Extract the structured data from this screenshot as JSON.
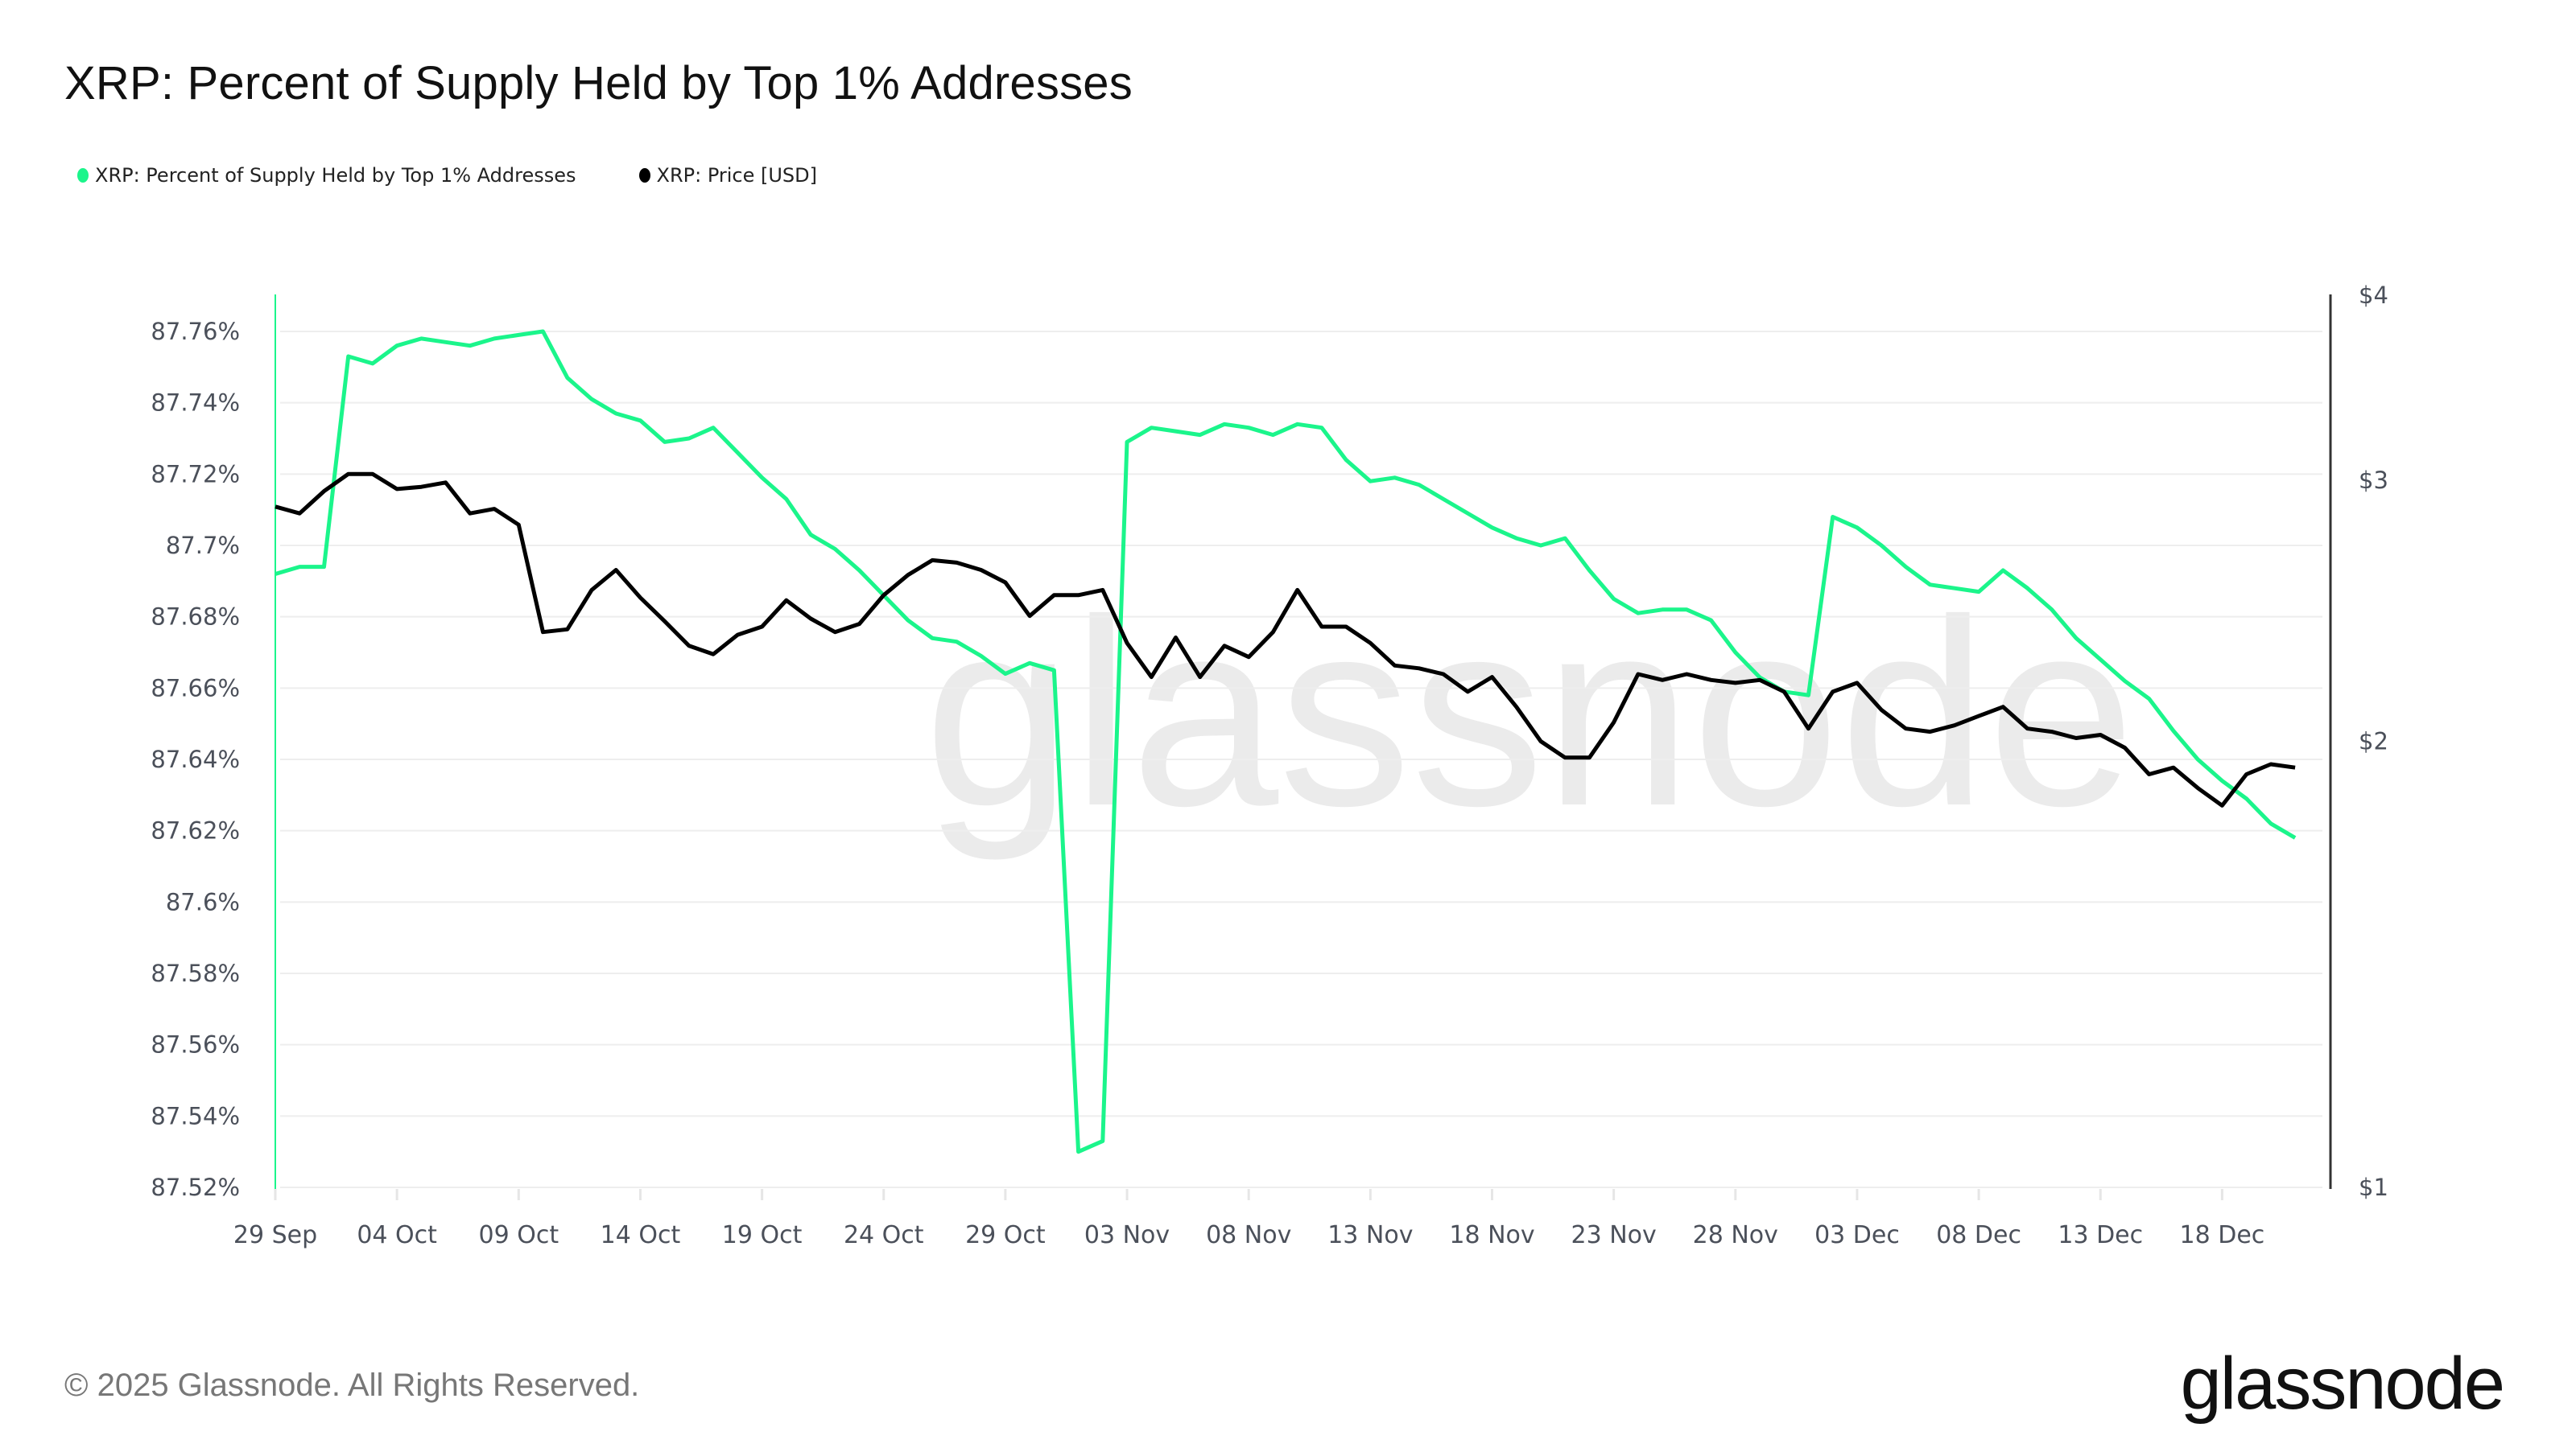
{
  "header": {
    "title": "XRP: Percent of Supply Held by Top 1% Addresses"
  },
  "legend": [
    {
      "label": "XRP: Percent of Supply Held by Top 1% Addresses",
      "color": "#1bf58b"
    },
    {
      "label": "XRP: Price [USD]",
      "color": "#000000"
    }
  ],
  "footer": {
    "copyright": "© 2025 Glassnode. All Rights Reserved.",
    "logo": "glassnode",
    "watermark": "glassnode"
  },
  "axes": {
    "left_ticks": [
      "87.76%",
      "87.74%",
      "87.72%",
      "87.7%",
      "87.68%",
      "87.66%",
      "87.64%",
      "87.62%",
      "87.6%",
      "87.58%",
      "87.56%",
      "87.54%",
      "87.52%"
    ],
    "right_ticks": [
      "$4",
      "$3",
      "$2",
      "$1"
    ],
    "x_ticks": [
      "29 Sep",
      "04 Oct",
      "09 Oct",
      "14 Oct",
      "19 Oct",
      "24 Oct",
      "29 Oct",
      "03 Nov",
      "08 Nov",
      "13 Nov",
      "18 Nov",
      "23 Nov",
      "28 Nov",
      "03 Dec",
      "08 Dec",
      "13 Dec",
      "18 Dec"
    ]
  },
  "chart_data": {
    "type": "line",
    "title": "XRP: Percent of Supply Held by Top 1% Addresses",
    "xlabel": "",
    "ylabel_left": "Percent of Supply Held by Top 1% Addresses",
    "ylabel_right": "Price [USD] (log scale)",
    "ylim_left": [
      87.52,
      87.765
    ],
    "ylim_right": [
      1,
      4
    ],
    "x_start": "2025-09-29",
    "x_step_days": 1,
    "grid": true,
    "legend_position": "top-left",
    "series": [
      {
        "name": "XRP: Percent of Supply Held by Top 1% Addresses",
        "axis": "left",
        "color": "#1bf58b",
        "values": [
          87.692,
          87.694,
          87.694,
          87.753,
          87.751,
          87.756,
          87.758,
          87.757,
          87.756,
          87.758,
          87.759,
          87.76,
          87.747,
          87.741,
          87.737,
          87.735,
          87.729,
          87.73,
          87.733,
          87.726,
          87.719,
          87.713,
          87.703,
          87.699,
          87.693,
          87.686,
          87.679,
          87.674,
          87.673,
          87.669,
          87.664,
          87.667,
          87.665,
          87.53,
          87.533,
          87.729,
          87.733,
          87.732,
          87.731,
          87.734,
          87.733,
          87.731,
          87.734,
          87.733,
          87.724,
          87.718,
          87.719,
          87.717,
          87.713,
          87.709,
          87.705,
          87.702,
          87.7,
          87.702,
          87.693,
          87.685,
          87.681,
          87.682,
          87.682,
          87.679,
          87.67,
          87.663,
          87.659,
          87.658,
          87.708,
          87.705,
          87.7,
          87.694,
          87.689,
          87.688,
          87.687,
          87.693,
          87.688,
          87.682,
          87.674,
          87.668,
          87.662,
          87.657,
          87.648,
          87.64,
          87.634,
          87.629,
          87.622,
          87.618
        ]
      },
      {
        "name": "XRP: Price [USD]",
        "axis": "right",
        "color": "#000000",
        "values": [
          2.88,
          2.85,
          2.95,
          3.03,
          3.03,
          2.96,
          2.97,
          2.99,
          2.85,
          2.87,
          2.8,
          2.37,
          2.38,
          2.53,
          2.61,
          2.5,
          2.41,
          2.32,
          2.29,
          2.36,
          2.39,
          2.49,
          2.42,
          2.37,
          2.4,
          2.51,
          2.59,
          2.65,
          2.64,
          2.61,
          2.56,
          2.43,
          2.51,
          2.51,
          2.53,
          2.33,
          2.21,
          2.35,
          2.21,
          2.32,
          2.28,
          2.37,
          2.53,
          2.39,
          2.39,
          2.33,
          2.25,
          2.24,
          2.22,
          2.16,
          2.21,
          2.11,
          2.0,
          1.95,
          1.95,
          2.06,
          2.22,
          2.2,
          2.22,
          2.2,
          2.19,
          2.2,
          2.16,
          2.04,
          2.16,
          2.19,
          2.1,
          2.04,
          2.03,
          2.05,
          2.08,
          2.11,
          2.04,
          2.03,
          2.01,
          2.02,
          1.98,
          1.9,
          1.92,
          1.86,
          1.81,
          1.9,
          1.93,
          1.92
        ]
      }
    ]
  }
}
